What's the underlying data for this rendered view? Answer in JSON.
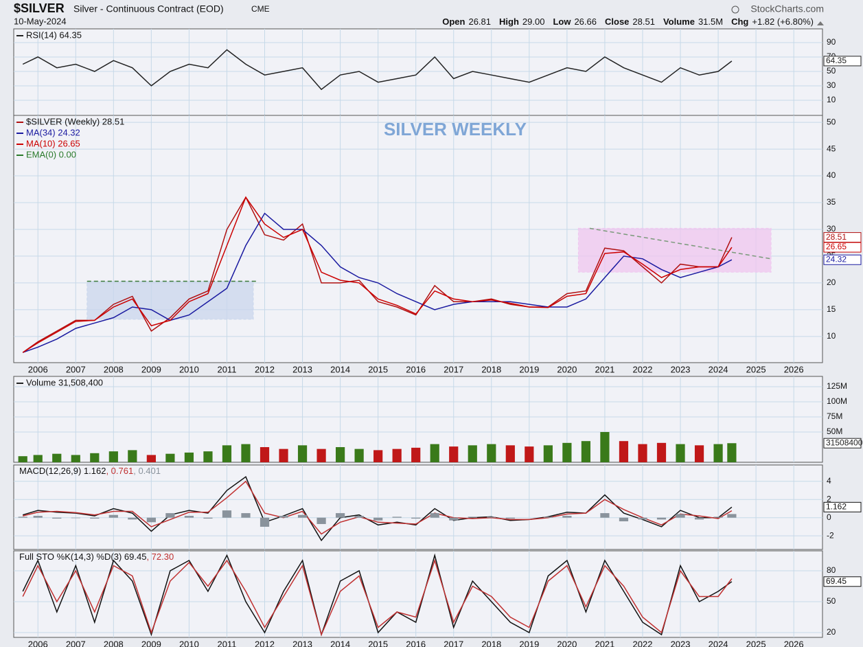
{
  "header": {
    "symbol": "$SILVER",
    "description": "Silver - Continuous Contract (EOD)",
    "exchange": "CME",
    "date": "10-May-2024",
    "source": "StockCharts.com",
    "quote": [
      {
        "label": "Open",
        "value": "26.81"
      },
      {
        "label": "High",
        "value": "29.00"
      },
      {
        "label": "Low",
        "value": "26.66"
      },
      {
        "label": "Close",
        "value": "28.51"
      },
      {
        "label": "Volume",
        "value": "31.5M"
      },
      {
        "label": "Chg",
        "value": "+1.82 (+6.80%)"
      }
    ]
  },
  "chart_data": [
    {
      "type": "line",
      "xlim": [
        2005.36,
        2026.76
      ],
      "xticks": [
        2006,
        2007,
        2008,
        2009,
        2010,
        2011,
        2012,
        2013,
        2014,
        2015,
        2016,
        2017,
        2018,
        2019,
        2020,
        2021,
        2022,
        2023,
        2024,
        2025,
        2026
      ],
      "show_xtick_labels": false,
      "x": [
        2005.6,
        2006,
        2006.5,
        2007,
        2007.5,
        2008,
        2008.5,
        2009,
        2009.5,
        2010,
        2010.5,
        2011,
        2011.5,
        2012,
        2012.5,
        2013,
        2013.5,
        2014,
        2014.5,
        2015,
        2015.5,
        2016,
        2016.5,
        2017,
        2017.5,
        2018,
        2018.5,
        2019,
        2019.5,
        2020,
        2020.5,
        2021,
        2021.5,
        2022,
        2022.5,
        2023,
        2023.5,
        2024,
        2024.36
      ],
      "ylim": [
        -11,
        109
      ],
      "yticks": [
        10,
        30,
        50,
        70,
        90
      ],
      "series": [
        {
          "name": "RSI(14) 64.35",
          "color": "#222222",
          "tag": true,
          "values": [
            60,
            70,
            55,
            60,
            50,
            65,
            55,
            30,
            50,
            60,
            55,
            80,
            60,
            45,
            50,
            55,
            25,
            45,
            50,
            35,
            40,
            45,
            70,
            40,
            50,
            45,
            40,
            35,
            45,
            55,
            50,
            70,
            55,
            45,
            35,
            55,
            45,
            50,
            64.35
          ]
        }
      ]
    },
    {
      "type": "line",
      "xlim": [
        2005.36,
        2026.76
      ],
      "xticks": [
        2006,
        2007,
        2008,
        2009,
        2010,
        2011,
        2012,
        2013,
        2014,
        2015,
        2016,
        2017,
        2018,
        2019,
        2020,
        2021,
        2022,
        2023,
        2024,
        2025,
        2026
      ],
      "show_xtick_labels": true,
      "annotation": "SILVER WEEKLY",
      "annotation_color": "#7fa6d6",
      "x": [
        2005.6,
        2006,
        2006.5,
        2007,
        2007.5,
        2008,
        2008.5,
        2009,
        2009.5,
        2010,
        2010.5,
        2011,
        2011.5,
        2012,
        2012.5,
        2013,
        2013.5,
        2014,
        2014.5,
        2015,
        2015.5,
        2016,
        2016.5,
        2017,
        2017.5,
        2018,
        2018.5,
        2019,
        2019.5,
        2020,
        2020.5,
        2021,
        2021.5,
        2022,
        2022.5,
        2023,
        2023.5,
        2024,
        2024.36
      ],
      "ylim": [
        5.1,
        51.3
      ],
      "yticks": [
        10,
        15,
        20,
        25,
        30,
        35,
        40,
        45,
        50
      ],
      "boxes": [
        {
          "x": [
            2007.3,
            2011.7
          ],
          "y": [
            13.2,
            20.3
          ],
          "color": "#c9d6ec"
        },
        {
          "x": [
            2020.3,
            2025.4
          ],
          "y": [
            22,
            30.2
          ],
          "color": "#efc6ef"
        }
      ],
      "lines": [
        {
          "x": [
            2007.3,
            2011.8
          ],
          "y": [
            20.3,
            20.3
          ],
          "color": "#3a7a3a"
        },
        {
          "x": [
            2020.6,
            2025.4
          ],
          "y": [
            30.2,
            24.5
          ],
          "color": "#7a9a7a"
        }
      ],
      "legend_note": "EMA(0) 0.00",
      "legend_note_color": "#2a7a2a",
      "series": [
        {
          "name": "$SILVER (Weekly) 28.51",
          "color": "#b01010",
          "tag": true,
          "values": [
            7,
            9,
            11,
            13,
            13,
            16,
            17.5,
            11,
            13.5,
            17,
            18.5,
            30,
            36,
            29,
            28,
            31,
            20,
            20,
            20.5,
            16.5,
            15.5,
            14,
            19.5,
            16.5,
            16.5,
            17,
            16,
            15.5,
            15.5,
            18,
            18.5,
            26.5,
            26,
            23,
            20,
            23.5,
            23,
            23,
            28.51
          ]
        },
        {
          "name": "MA(34) 24.32",
          "color": "#1a1aa0",
          "tag": true,
          "values": [
            7,
            8,
            9.5,
            11.5,
            12.5,
            13.5,
            15.5,
            15,
            13,
            14,
            16.5,
            19,
            27,
            33,
            30,
            30,
            27,
            23,
            21,
            20,
            18,
            16.5,
            15,
            16,
            16.5,
            16.5,
            16.5,
            16,
            15.5,
            15.5,
            17,
            21,
            25,
            24.5,
            22.5,
            21,
            22,
            23,
            24.32
          ]
        },
        {
          "name": "MA(10) 26.65",
          "color": "#cc0000",
          "tag": true,
          "values": [
            7,
            8.8,
            10.8,
            12.8,
            13,
            15.5,
            17,
            12,
            13,
            16.5,
            18,
            27,
            36,
            31,
            28.5,
            30,
            22,
            20.5,
            20,
            17,
            15.8,
            14.2,
            18.5,
            17,
            16.5,
            16.8,
            16.2,
            15.5,
            15.4,
            17.5,
            18,
            25.5,
            25.8,
            23.5,
            21,
            22.5,
            23,
            23,
            26.65
          ]
        }
      ]
    },
    {
      "type": "bar",
      "xlim": [
        2005.36,
        2026.76
      ],
      "xticks": [
        2006,
        2007,
        2008,
        2009,
        2010,
        2011,
        2012,
        2013,
        2014,
        2015,
        2016,
        2017,
        2018,
        2019,
        2020,
        2021,
        2022,
        2023,
        2024,
        2025,
        2026
      ],
      "show_xtick_labels": false,
      "up_color": "#3a7a1a",
      "down_color": "#c01818",
      "x": [
        2005.6,
        2006,
        2006.5,
        2007,
        2007.5,
        2008,
        2008.5,
        2009,
        2009.5,
        2010,
        2010.5,
        2011,
        2011.5,
        2012,
        2012.5,
        2013,
        2013.5,
        2014,
        2014.5,
        2015,
        2015.5,
        2016,
        2016.5,
        2017,
        2017.5,
        2018,
        2018.5,
        2019,
        2019.5,
        2020,
        2020.5,
        2021,
        2021.5,
        2022,
        2022.5,
        2023,
        2023.5,
        2024,
        2024.36
      ],
      "ylim": [
        0,
        142000000
      ],
      "yticks": [
        {
          "value": 50000000,
          "label": "50M"
        },
        {
          "value": 75000000,
          "label": "75M"
        },
        {
          "value": 100000000,
          "label": "100M"
        },
        {
          "value": 125000000,
          "label": "125M"
        }
      ],
      "series": [
        {
          "name": "Volume 31,508,400",
          "color": "#222222",
          "tag": true,
          "values": [
            10000000,
            12000000,
            14000000,
            12000000,
            15000000,
            18000000,
            20000000,
            12000000,
            14000000,
            16000000,
            18000000,
            28000000,
            30000000,
            25000000,
            22000000,
            28000000,
            22000000,
            25000000,
            22000000,
            20000000,
            22000000,
            24000000,
            30000000,
            26000000,
            28000000,
            30000000,
            28000000,
            26000000,
            28000000,
            32000000,
            35000000,
            50000000,
            35000000,
            30000000,
            32000000,
            30000000,
            28000000,
            30000000,
            31508400
          ]
        }
      ]
    },
    {
      "type": "line",
      "xlim": [
        2005.36,
        2026.76
      ],
      "xticks": [
        2006,
        2007,
        2008,
        2009,
        2010,
        2011,
        2012,
        2013,
        2014,
        2015,
        2016,
        2017,
        2018,
        2019,
        2020,
        2021,
        2022,
        2023,
        2024,
        2025,
        2026
      ],
      "show_xtick_labels": false,
      "inline_legend": true,
      "x": [
        2005.6,
        2006,
        2006.5,
        2007,
        2007.5,
        2008,
        2008.5,
        2009,
        2009.5,
        2010,
        2010.5,
        2011,
        2011.5,
        2012,
        2012.5,
        2013,
        2013.5,
        2014,
        2014.5,
        2015,
        2015.5,
        2016,
        2016.5,
        2017,
        2017.5,
        2018,
        2018.5,
        2019,
        2019.5,
        2020,
        2020.5,
        2021,
        2021.5,
        2022,
        2022.5,
        2023,
        2023.5,
        2024,
        2024.36
      ],
      "ylim": [
        -3.5,
        5.8
      ],
      "yticks": [
        -2,
        0,
        2,
        4
      ],
      "series": [
        {
          "name": "MACD(12,26,9) 1.162",
          "color": "#111111",
          "tag": true,
          "values": [
            0.3,
            0.8,
            0.6,
            0.5,
            0.2,
            1,
            0.5,
            -1.5,
            0.3,
            0.8,
            0.5,
            3,
            4.5,
            -0.5,
            0.2,
            1,
            -2.5,
            0,
            0.3,
            -0.8,
            -0.5,
            -0.8,
            1,
            -0.3,
            0,
            0.1,
            -0.3,
            -0.2,
            0.1,
            0.6,
            0.5,
            2.5,
            0.5,
            -0.2,
            -1,
            0.8,
            0,
            0,
            1.162
          ]
        },
        {
          "name": ", 0.761",
          "color": "#c03030",
          "values": [
            0.2,
            0.6,
            0.7,
            0.55,
            0.3,
            0.7,
            0.7,
            -1,
            -0.2,
            0.6,
            0.6,
            2.2,
            4,
            0.5,
            0,
            0.7,
            -1.8,
            -0.5,
            0.1,
            -0.5,
            -0.6,
            -0.7,
            0.5,
            0,
            -0.1,
            0,
            -0.2,
            -0.2,
            0,
            0.4,
            0.5,
            2,
            0.9,
            0,
            -0.8,
            0.4,
            0.2,
            -0.1,
            0.761
          ]
        },
        {
          "name": ", 0.401",
          "color": "#8a939c",
          "kind": "histogram",
          "values": [
            0.1,
            0.2,
            -0.1,
            -0.05,
            -0.1,
            0.3,
            -0.2,
            -0.5,
            0.5,
            0.2,
            -0.1,
            0.8,
            0.5,
            -1,
            0.2,
            0.3,
            -0.7,
            0.5,
            0.2,
            -0.3,
            0.1,
            -0.1,
            0.5,
            -0.3,
            0.1,
            0.1,
            -0.1,
            0,
            0.1,
            0.2,
            0,
            0.5,
            -0.4,
            -0.2,
            -0.2,
            0.4,
            -0.2,
            0.1,
            0.401
          ]
        }
      ]
    },
    {
      "type": "line",
      "xlim": [
        2005.36,
        2026.76
      ],
      "xticks": [
        2006,
        2007,
        2008,
        2009,
        2010,
        2011,
        2012,
        2013,
        2014,
        2015,
        2016,
        2017,
        2018,
        2019,
        2020,
        2021,
        2022,
        2023,
        2024,
        2025,
        2026
      ],
      "show_xtick_labels": true,
      "inline_legend": true,
      "x": [
        2005.6,
        2006,
        2006.5,
        2007,
        2007.5,
        2008,
        2008.5,
        2009,
        2009.5,
        2010,
        2010.5,
        2011,
        2011.5,
        2012,
        2012.5,
        2013,
        2013.5,
        2014,
        2014.5,
        2015,
        2015.5,
        2016,
        2016.5,
        2017,
        2017.5,
        2018,
        2018.5,
        2019,
        2019.5,
        2020,
        2020.5,
        2021,
        2021.5,
        2022,
        2022.5,
        2023,
        2023.5,
        2024,
        2024.36
      ],
      "ylim": [
        15.3,
        99.3
      ],
      "yticks": [
        20,
        50,
        80
      ],
      "series": [
        {
          "name": "Full STO %K(14,3) %D(3) 69.45",
          "color": "#111111",
          "tag": true,
          "values": [
            60,
            90,
            40,
            85,
            30,
            90,
            70,
            18,
            80,
            90,
            60,
            95,
            50,
            20,
            60,
            90,
            18,
            70,
            80,
            20,
            40,
            30,
            95,
            25,
            70,
            50,
            30,
            20,
            75,
            90,
            40,
            90,
            60,
            30,
            18,
            85,
            50,
            60,
            69.45
          ]
        },
        {
          "name": ", 72.30",
          "color": "#c03030",
          "values": [
            55,
            85,
            50,
            80,
            40,
            85,
            75,
            20,
            70,
            88,
            65,
            90,
            60,
            25,
            55,
            85,
            18,
            60,
            75,
            25,
            40,
            35,
            90,
            30,
            65,
            55,
            35,
            25,
            70,
            85,
            45,
            85,
            65,
            35,
            20,
            80,
            55,
            55,
            72.3
          ]
        }
      ]
    }
  ]
}
